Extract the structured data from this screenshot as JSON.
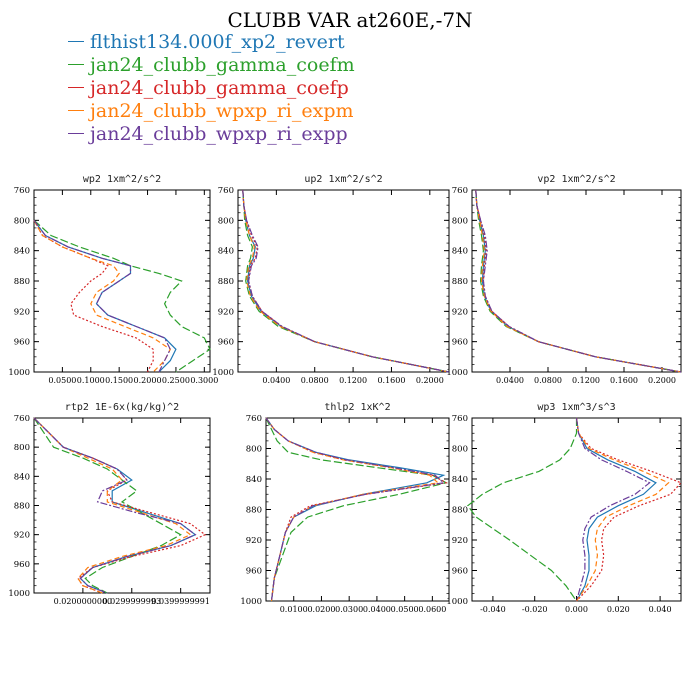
{
  "title": "CLUBB VAR at260E,-7N",
  "legend": [
    {
      "name": "flthist134.000f_xp2_revert",
      "color": "#1f77b4"
    },
    {
      "name": "jan24_clubb_gamma_coefm",
      "color": "#2ca02c"
    },
    {
      "name": "jan24_clubb_gamma_coefp",
      "color": "#d62728"
    },
    {
      "name": "jan24_clubb_wpxp_ri_expm",
      "color": "#ff7f0e"
    },
    {
      "name": "jan24_clubb_wpxp_ri_expp",
      "color": "#6a3d9a"
    }
  ],
  "chart_data": [
    {
      "type": "line",
      "title": "wp2  1xm^2/s^2",
      "xlim": [
        0,
        0.31
      ],
      "ylim": [
        760,
        1000
      ],
      "xticks": [
        "0.0500",
        "0.1000",
        "0.1500",
        "0.2000",
        "0.2500",
        "0.3000"
      ],
      "xtick_values": [
        0.05,
        0.1,
        0.15,
        0.2,
        0.25,
        0.3
      ],
      "yticks": [
        "760",
        "800",
        "840",
        "880",
        "920",
        "960",
        "1000"
      ],
      "y": [
        800,
        820,
        835,
        850,
        860,
        870,
        880,
        895,
        910,
        925,
        940,
        955,
        970,
        985,
        1000
      ],
      "series": [
        {
          "name": "flthist134.000f_xp2_revert",
          "values": [
            0.0,
            0.02,
            0.06,
            0.12,
            0.17,
            0.17,
            0.15,
            0.12,
            0.11,
            0.13,
            0.18,
            0.23,
            0.25,
            0.24,
            0.22
          ]
        },
        {
          "name": "jan24_clubb_gamma_coefm",
          "values": [
            0.0,
            0.03,
            0.08,
            0.14,
            0.17,
            0.22,
            0.26,
            0.24,
            0.23,
            0.24,
            0.26,
            0.3,
            0.31,
            0.28,
            0.25
          ]
        },
        {
          "name": "jan24_clubb_gamma_coefp",
          "values": [
            0.0,
            0.015,
            0.05,
            0.1,
            0.13,
            0.12,
            0.1,
            0.08,
            0.065,
            0.07,
            0.12,
            0.18,
            0.21,
            0.21,
            0.2
          ]
        },
        {
          "name": "jan24_clubb_wpxp_ri_expm",
          "values": [
            0.0,
            0.015,
            0.05,
            0.1,
            0.14,
            0.15,
            0.14,
            0.11,
            0.1,
            0.11,
            0.16,
            0.21,
            0.24,
            0.23,
            0.21
          ]
        },
        {
          "name": "jan24_clubb_wpxp_ri_expp",
          "values": [
            0.0,
            0.02,
            0.06,
            0.12,
            0.17,
            0.17,
            0.15,
            0.12,
            0.11,
            0.13,
            0.18,
            0.23,
            0.24,
            0.23,
            0.22
          ]
        }
      ]
    },
    {
      "type": "line",
      "title": "up2  1xm^2/s^2",
      "xlim": [
        0,
        0.22
      ],
      "ylim": [
        760,
        1000
      ],
      "xticks": [
        "0.0400",
        "0.0800",
        "0.1200",
        "0.1600",
        "0.2000"
      ],
      "xtick_values": [
        0.04,
        0.08,
        0.12,
        0.16,
        0.2
      ],
      "yticks": [
        "760",
        "800",
        "840",
        "880",
        "920",
        "960",
        "1000"
      ],
      "y": [
        760,
        780,
        800,
        820,
        835,
        850,
        860,
        880,
        900,
        920,
        940,
        960,
        980,
        1000
      ],
      "series": [
        {
          "name": "flthist134.000f_xp2_revert",
          "values": [
            0.005,
            0.006,
            0.008,
            0.012,
            0.018,
            0.016,
            0.012,
            0.01,
            0.014,
            0.024,
            0.045,
            0.08,
            0.14,
            0.22
          ]
        },
        {
          "name": "jan24_clubb_gamma_coefm",
          "values": [
            0.005,
            0.006,
            0.007,
            0.01,
            0.015,
            0.013,
            0.01,
            0.008,
            0.012,
            0.022,
            0.042,
            0.08,
            0.14,
            0.22
          ]
        },
        {
          "name": "jan24_clubb_gamma_coefp",
          "values": [
            0.005,
            0.006,
            0.009,
            0.014,
            0.02,
            0.018,
            0.013,
            0.011,
            0.015,
            0.025,
            0.046,
            0.08,
            0.14,
            0.22
          ]
        },
        {
          "name": "jan24_clubb_wpxp_ri_expm",
          "values": [
            0.005,
            0.006,
            0.008,
            0.012,
            0.017,
            0.015,
            0.011,
            0.009,
            0.013,
            0.023,
            0.044,
            0.08,
            0.14,
            0.22
          ]
        },
        {
          "name": "jan24_clubb_wpxp_ri_expp",
          "values": [
            0.005,
            0.006,
            0.009,
            0.015,
            0.021,
            0.019,
            0.014,
            0.011,
            0.015,
            0.025,
            0.046,
            0.08,
            0.14,
            0.22
          ]
        }
      ]
    },
    {
      "type": "line",
      "title": "vp2  1xm^2/s^2",
      "xlim": [
        0,
        0.22
      ],
      "ylim": [
        760,
        1000
      ],
      "xticks": [
        "0.0400",
        "0.0800",
        "0.1200",
        "0.1600",
        "0.2000"
      ],
      "xtick_values": [
        0.04,
        0.08,
        0.12,
        0.16,
        0.2
      ],
      "yticks": [
        "760",
        "800",
        "840",
        "880",
        "920",
        "960",
        "1000"
      ],
      "y": [
        760,
        780,
        800,
        820,
        840,
        860,
        880,
        900,
        920,
        940,
        960,
        980,
        1000
      ],
      "series": [
        {
          "name": "flthist134.000f_xp2_revert",
          "values": [
            0.004,
            0.005,
            0.008,
            0.012,
            0.014,
            0.012,
            0.011,
            0.013,
            0.02,
            0.038,
            0.07,
            0.13,
            0.22
          ]
        },
        {
          "name": "jan24_clubb_gamma_coefm",
          "values": [
            0.004,
            0.005,
            0.007,
            0.01,
            0.012,
            0.01,
            0.009,
            0.012,
            0.019,
            0.036,
            0.07,
            0.13,
            0.22
          ]
        },
        {
          "name": "jan24_clubb_gamma_coefp",
          "values": [
            0.004,
            0.005,
            0.009,
            0.013,
            0.015,
            0.013,
            0.012,
            0.014,
            0.021,
            0.039,
            0.07,
            0.13,
            0.22
          ]
        },
        {
          "name": "jan24_clubb_wpxp_ri_expm",
          "values": [
            0.004,
            0.005,
            0.008,
            0.011,
            0.013,
            0.011,
            0.01,
            0.013,
            0.02,
            0.037,
            0.07,
            0.13,
            0.22
          ]
        },
        {
          "name": "jan24_clubb_wpxp_ri_expp",
          "values": [
            0.004,
            0.005,
            0.009,
            0.014,
            0.016,
            0.014,
            0.012,
            0.014,
            0.021,
            0.039,
            0.07,
            0.13,
            0.22
          ]
        }
      ]
    },
    {
      "type": "line",
      "title": "rtp2  1E-6x(kg/kg)^2",
      "xlim": [
        0.01,
        0.046
      ],
      "ylim": [
        760,
        1000
      ],
      "xticks": [
        "0.0200000000",
        "0.0299999993",
        "0.0399999991"
      ],
      "xtick_values": [
        0.02,
        0.03,
        0.04
      ],
      "yticks": [
        "760",
        "800",
        "840",
        "880",
        "920",
        "960",
        "1000"
      ],
      "y": [
        760,
        780,
        800,
        815,
        830,
        845,
        860,
        875,
        890,
        905,
        920,
        935,
        950,
        965,
        980,
        990,
        1000
      ],
      "series": [
        {
          "name": "flthist134.000f_xp2_revert",
          "values": [
            0.01,
            0.013,
            0.016,
            0.022,
            0.027,
            0.03,
            0.026,
            0.026,
            0.033,
            0.04,
            0.043,
            0.038,
            0.029,
            0.022,
            0.0195,
            0.021,
            0.025
          ]
        },
        {
          "name": "jan24_clubb_gamma_coefm",
          "values": [
            0.01,
            0.012,
            0.014,
            0.02,
            0.025,
            0.028,
            0.031,
            0.028,
            0.032,
            0.036,
            0.04,
            0.036,
            0.03,
            0.024,
            0.0205,
            0.022,
            0.025
          ]
        },
        {
          "name": "jan24_clubb_gamma_coefp",
          "values": [
            0.01,
            0.013,
            0.016,
            0.022,
            0.027,
            0.029,
            0.025,
            0.026,
            0.034,
            0.042,
            0.045,
            0.04,
            0.03,
            0.022,
            0.019,
            0.02,
            0.024
          ]
        },
        {
          "name": "jan24_clubb_wpxp_ri_expm",
          "values": [
            0.01,
            0.013,
            0.016,
            0.021,
            0.026,
            0.028,
            0.025,
            0.025,
            0.032,
            0.039,
            0.042,
            0.037,
            0.028,
            0.021,
            0.019,
            0.02,
            0.024
          ]
        },
        {
          "name": "jan24_clubb_wpxp_ri_expp",
          "values": [
            0.01,
            0.013,
            0.016,
            0.022,
            0.027,
            0.029,
            0.024,
            0.023,
            0.031,
            0.04,
            0.043,
            0.038,
            0.029,
            0.022,
            0.0195,
            0.021,
            0.025
          ]
        }
      ]
    },
    {
      "type": "line",
      "title": "thlp2  1xK^2",
      "xlim": [
        0,
        0.066
      ],
      "ylim": [
        760,
        1000
      ],
      "xticks": [
        "0.0100",
        "0.0200",
        "0.0300",
        "0.0400",
        "0.0500",
        "0.0600"
      ],
      "xtick_values": [
        0.01,
        0.02,
        0.03,
        0.04,
        0.05,
        0.06
      ],
      "yticks": [
        "760",
        "800",
        "840",
        "880",
        "920",
        "960",
        "1000"
      ],
      "y": [
        760,
        775,
        790,
        805,
        815,
        825,
        835,
        845,
        860,
        875,
        890,
        910,
        940,
        970,
        1000
      ],
      "series": [
        {
          "name": "flthist134.000f_xp2_revert",
          "values": [
            0.0,
            0.003,
            0.008,
            0.018,
            0.03,
            0.048,
            0.064,
            0.058,
            0.035,
            0.018,
            0.01,
            0.007,
            0.005,
            0.003,
            0.002
          ]
        },
        {
          "name": "jan24_clubb_gamma_coefm",
          "values": [
            0.0,
            0.002,
            0.004,
            0.008,
            0.02,
            0.04,
            0.06,
            0.065,
            0.048,
            0.028,
            0.015,
            0.009,
            0.006,
            0.003,
            0.002
          ]
        },
        {
          "name": "jan24_clubb_gamma_coefp",
          "values": [
            0.0,
            0.003,
            0.008,
            0.017,
            0.028,
            0.045,
            0.06,
            0.065,
            0.036,
            0.016,
            0.009,
            0.007,
            0.005,
            0.003,
            0.002
          ]
        },
        {
          "name": "jan24_clubb_wpxp_ri_expm",
          "values": [
            0.0,
            0.003,
            0.008,
            0.017,
            0.028,
            0.045,
            0.059,
            0.062,
            0.035,
            0.017,
            0.01,
            0.007,
            0.005,
            0.003,
            0.002
          ]
        },
        {
          "name": "jan24_clubb_wpxp_ri_expp",
          "values": [
            0.0,
            0.003,
            0.008,
            0.018,
            0.029,
            0.046,
            0.061,
            0.064,
            0.036,
            0.017,
            0.01,
            0.007,
            0.005,
            0.003,
            0.002
          ]
        }
      ]
    },
    {
      "type": "line",
      "title": "wp3  1xm^3/s^3",
      "xlim": [
        -0.05,
        0.05
      ],
      "ylim": [
        760,
        1000
      ],
      "xticks": [
        "-0.040",
        "-0.020",
        "0.000",
        "0.020",
        "0.040"
      ],
      "xtick_values": [
        -0.04,
        -0.02,
        0.0,
        0.02,
        0.04
      ],
      "yticks": [
        "760",
        "800",
        "840",
        "880",
        "920",
        "960",
        "1000"
      ],
      "y": [
        760,
        780,
        800,
        815,
        830,
        845,
        860,
        875,
        890,
        905,
        920,
        940,
        960,
        980,
        1000
      ],
      "series": [
        {
          "name": "flthist134.000f_xp2_revert",
          "values": [
            0.0,
            0.001,
            0.005,
            0.015,
            0.028,
            0.038,
            0.032,
            0.02,
            0.01,
            0.006,
            0.005,
            0.006,
            0.006,
            0.004,
            0.0
          ]
        },
        {
          "name": "jan24_clubb_gamma_coefm",
          "values": [
            0.0,
            0.0,
            -0.003,
            -0.008,
            -0.018,
            -0.035,
            -0.045,
            -0.052,
            -0.048,
            -0.04,
            -0.032,
            -0.022,
            -0.012,
            -0.005,
            0.0
          ]
        },
        {
          "name": "jan24_clubb_gamma_coefp",
          "values": [
            0.0,
            0.001,
            0.007,
            0.02,
            0.036,
            0.05,
            0.045,
            0.03,
            0.018,
            0.013,
            0.012,
            0.013,
            0.012,
            0.007,
            0.0
          ]
        },
        {
          "name": "jan24_clubb_wpxp_ri_expm",
          "values": [
            0.0,
            0.001,
            0.006,
            0.018,
            0.032,
            0.044,
            0.038,
            0.025,
            0.014,
            0.01,
            0.009,
            0.01,
            0.009,
            0.005,
            0.0
          ]
        },
        {
          "name": "jan24_clubb_wpxp_ri_expp",
          "values": [
            0.0,
            0.001,
            0.004,
            0.012,
            0.024,
            0.035,
            0.028,
            0.016,
            0.007,
            0.004,
            0.003,
            0.004,
            0.004,
            0.002,
            0.0
          ]
        }
      ]
    }
  ]
}
